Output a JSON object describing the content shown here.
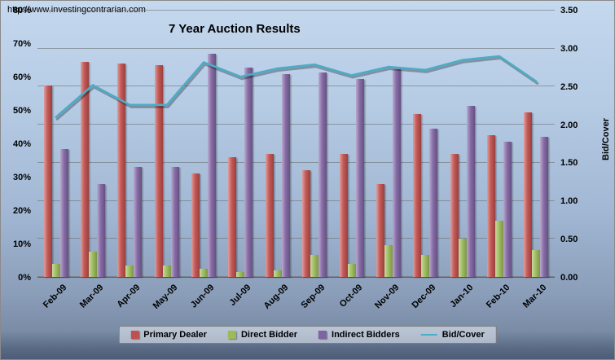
{
  "page": {
    "url_text": "http://www.investingcontrarian.com"
  },
  "chart_data": {
    "type": "bar",
    "subtype": "grouped bars with secondary-axis line",
    "title": "7 Year Auction Results",
    "categories": [
      "Feb-09",
      "Mar-09",
      "Apr-09",
      "May-09",
      "Jun-09",
      "Jul-09",
      "Aug-09",
      "Sep-09",
      "Oct-09",
      "Nov-09",
      "Dec-09",
      "Jan-10",
      "Feb-10",
      "Mar-10"
    ],
    "series": [
      {
        "name": "Primary Dealer",
        "type": "bar",
        "axis": "left",
        "color": "#C0504D",
        "values": [
          57.5,
          64.5,
          64,
          63.5,
          31,
          36,
          37,
          32,
          37,
          28,
          49,
          37,
          42.5,
          49.5
        ]
      },
      {
        "name": "Direct Bidder",
        "type": "bar",
        "axis": "left",
        "color": "#9BBB59",
        "values": [
          4,
          7.5,
          3.5,
          3.5,
          2.5,
          1.5,
          2,
          6.5,
          4,
          9.5,
          6.5,
          11.5,
          17,
          8
        ]
      },
      {
        "name": "Indirect Bidders",
        "type": "bar",
        "axis": "left",
        "color": "#8064A2",
        "values": [
          38.5,
          28,
          33,
          33,
          67,
          63,
          61,
          61.5,
          59.5,
          62.5,
          44.5,
          51.5,
          40.5,
          42
        ]
      },
      {
        "name": "Bid/Cover",
        "type": "line",
        "axis": "right",
        "color": "#4BACC6",
        "values": [
          2.1,
          2.52,
          2.26,
          2.26,
          2.82,
          2.63,
          2.74,
          2.79,
          2.65,
          2.76,
          2.72,
          2.85,
          2.9,
          2.57
        ]
      }
    ],
    "left_axis": {
      "min": 0,
      "max": 80,
      "ticks": [
        "0%",
        "10%",
        "20%",
        "30%",
        "40%",
        "50%",
        "60%",
        "70%",
        "80%"
      ]
    },
    "right_axis": {
      "min": 0,
      "max": 3.5,
      "label": "Bid/Cover",
      "ticks": [
        "0.00",
        "0.50",
        "1.00",
        "1.50",
        "2.00",
        "2.50",
        "3.00",
        "3.50"
      ]
    },
    "grid": true,
    "legend_position": "bottom"
  }
}
